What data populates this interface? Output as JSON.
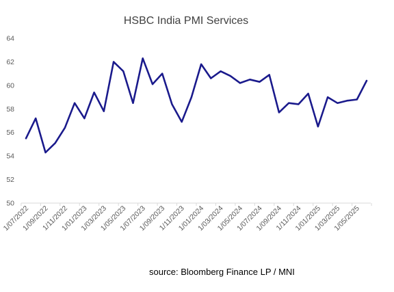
{
  "chart_data": {
    "type": "line",
    "title": "HSBC India PMI Services",
    "xlabel": "",
    "ylabel": "",
    "ylim": [
      50,
      64
    ],
    "yticks": [
      50,
      52,
      54,
      56,
      58,
      60,
      62,
      64
    ],
    "grid": false,
    "legend": "none",
    "x": [
      "1/07/2022",
      "1/08/2022",
      "1/09/2022",
      "1/10/2022",
      "1/11/2022",
      "1/12/2022",
      "1/01/2023",
      "1/02/2023",
      "1/03/2023",
      "1/04/2023",
      "1/05/2023",
      "1/06/2023",
      "1/07/2023",
      "1/08/2023",
      "1/09/2023",
      "1/10/2023",
      "1/11/2023",
      "1/12/2023",
      "1/01/2024",
      "1/02/2024",
      "1/03/2024",
      "1/04/2024",
      "1/05/2024",
      "1/06/2024",
      "1/07/2024",
      "1/08/2024",
      "1/09/2024",
      "1/10/2024",
      "1/11/2024",
      "1/12/2024",
      "1/01/2025",
      "1/02/2025",
      "1/03/2025",
      "1/04/2025",
      "1/05/2025",
      "1/06/2025"
    ],
    "xtick_labels": [
      "1/07/2022",
      "1/09/2022",
      "1/11/2022",
      "1/01/2023",
      "1/03/2023",
      "1/05/2023",
      "1/07/2023",
      "1/09/2023",
      "1/11/2023",
      "1/01/2024",
      "1/03/2024",
      "1/05/2024",
      "1/07/2024",
      "1/09/2024",
      "1/11/2024",
      "1/01/2025",
      "1/03/2025",
      "1/05/2025"
    ],
    "series": [
      {
        "values": [
          55.5,
          57.2,
          54.3,
          55.1,
          56.4,
          58.5,
          57.2,
          59.4,
          57.8,
          62.0,
          61.2,
          58.5,
          62.3,
          60.1,
          61.0,
          58.4,
          56.9,
          59.0,
          61.8,
          60.6,
          61.2,
          60.8,
          60.2,
          60.5,
          60.3,
          60.9,
          57.7,
          58.5,
          58.4,
          59.3,
          56.5,
          59.0,
          58.5,
          58.7,
          58.8,
          60.4
        ],
        "color": "#1a1a8c"
      }
    ]
  },
  "footer": {
    "source": "source: Bloomberg Finance LP / MNI"
  }
}
